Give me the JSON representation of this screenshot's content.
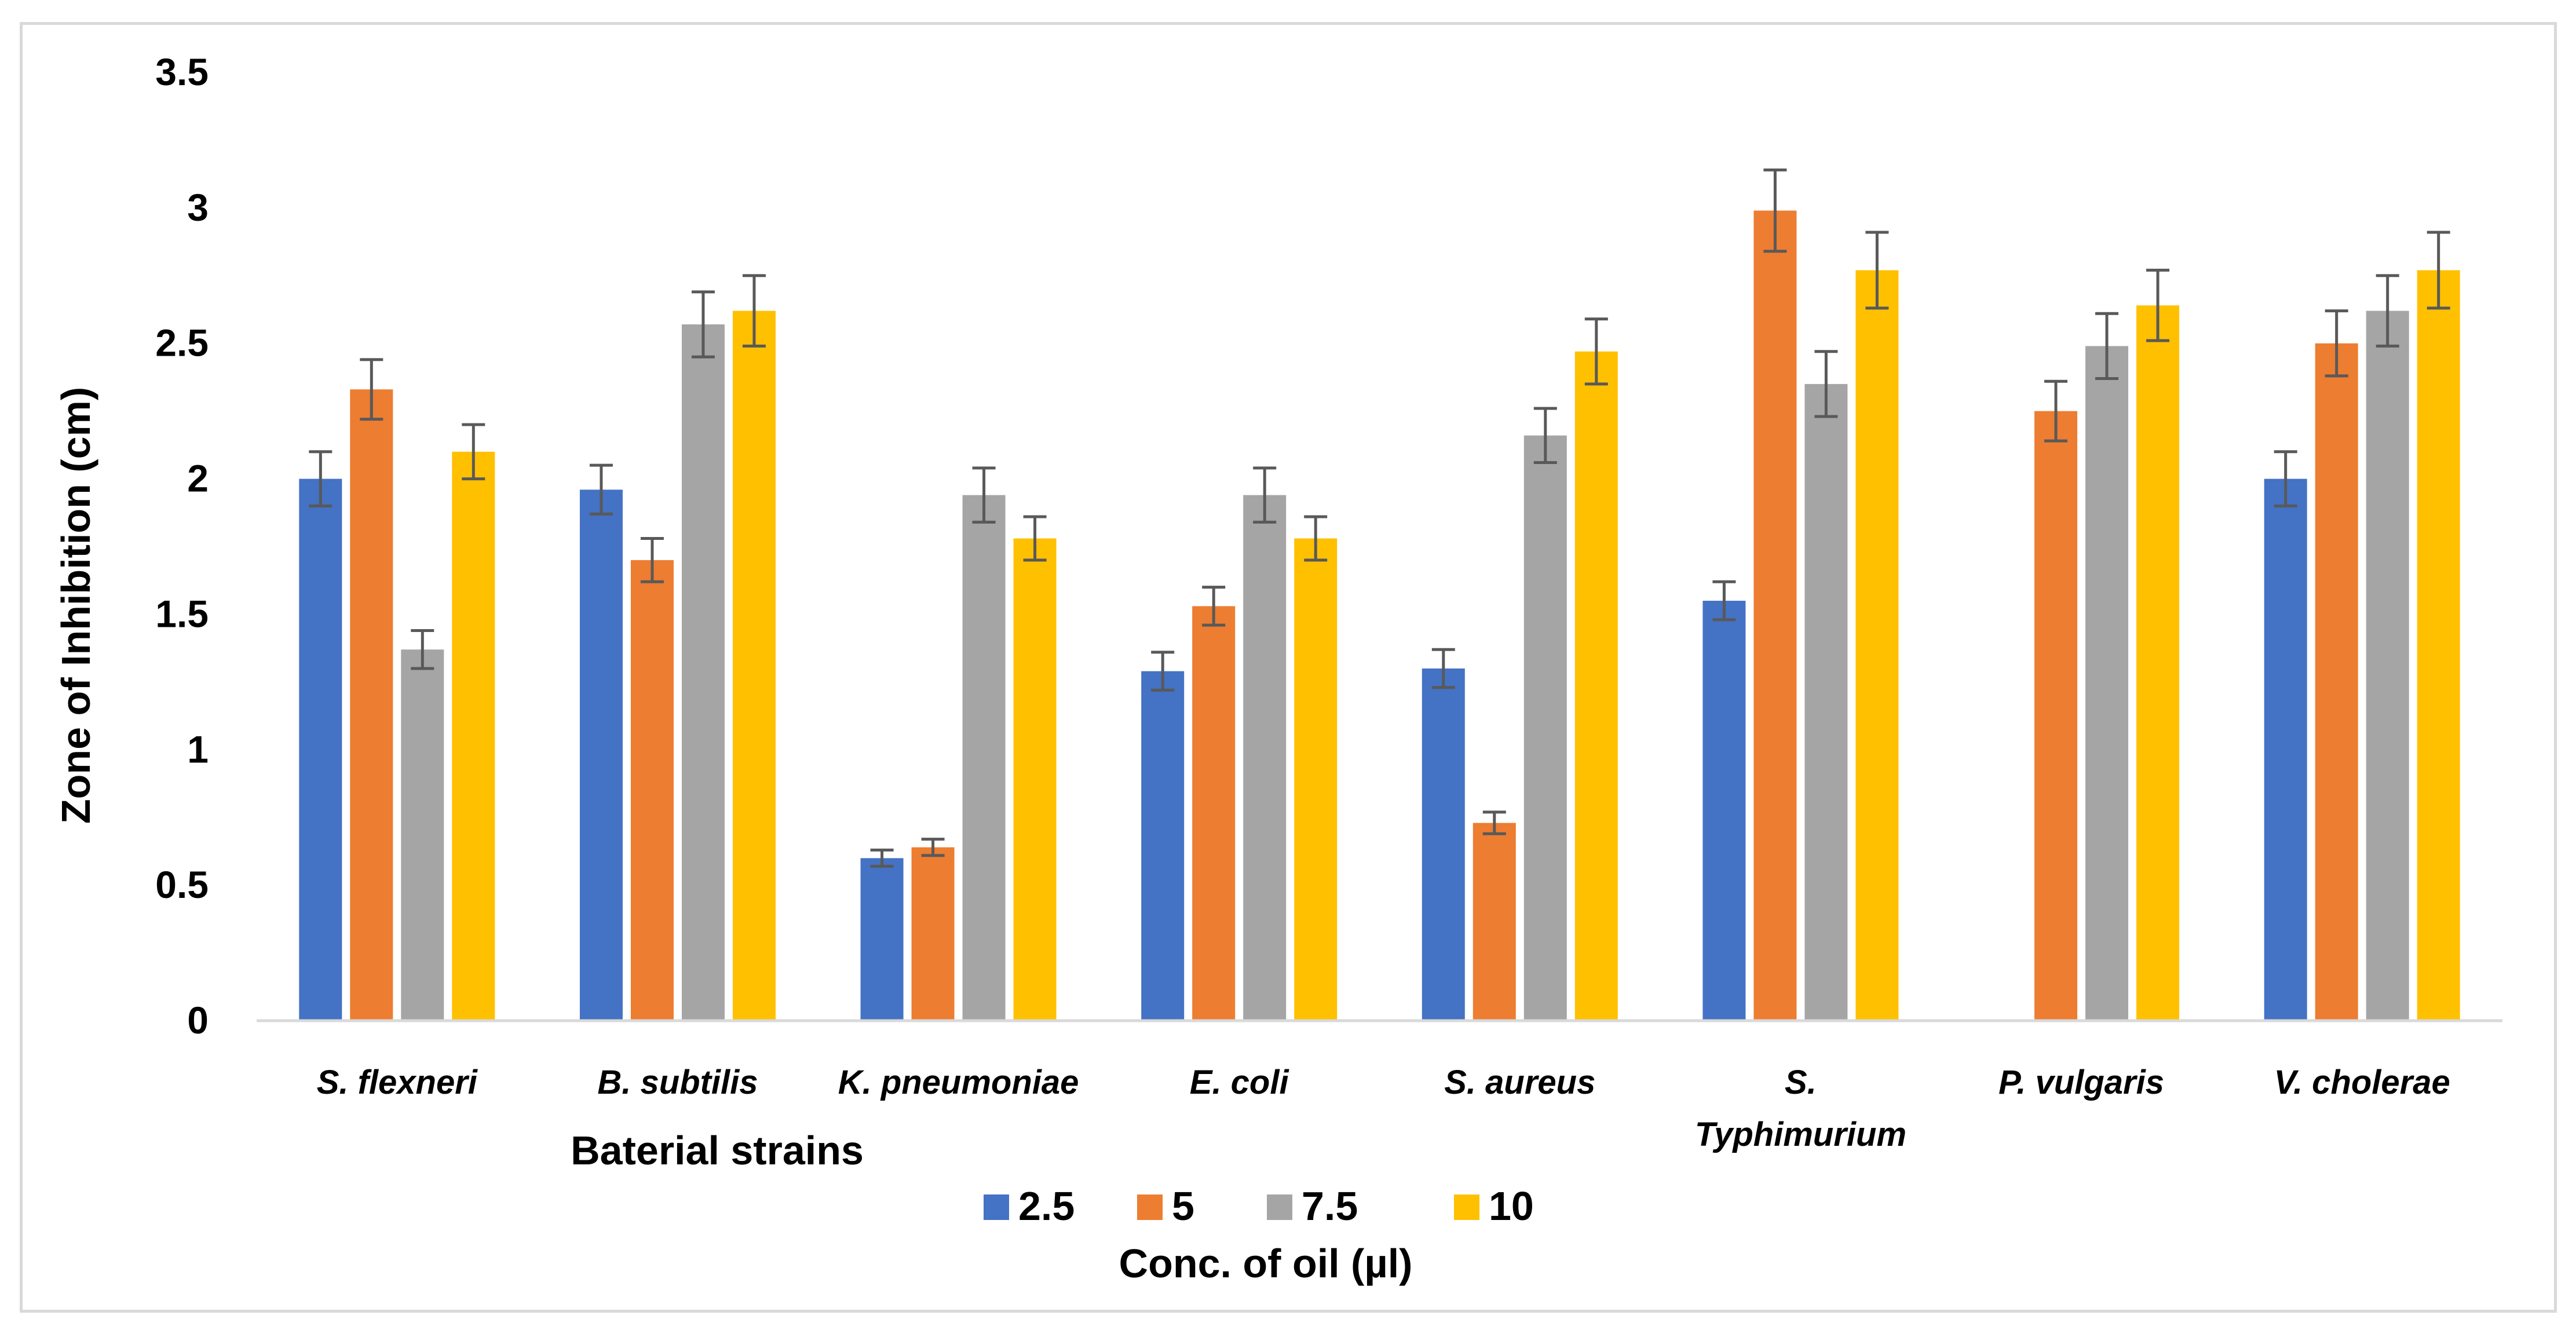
{
  "chart_data": {
    "type": "bar",
    "title": "",
    "ylabel": "Zone of Inhibition (cm)",
    "xlabel": "Baterial strains",
    "legend_title": "Conc. of oil (µl)",
    "legend_position": "bottom",
    "ylim": [
      0,
      3.5
    ],
    "yticks": [
      0,
      0.5,
      1,
      1.5,
      2,
      2.5,
      3,
      3.5
    ],
    "ytick_labels": [
      "0",
      "0.5",
      "1",
      "1.5",
      "2",
      "2.5",
      "3",
      "3.5"
    ],
    "grid": false,
    "categories": [
      [
        "S.  flexneri"
      ],
      [
        "B. subtilis"
      ],
      [
        "K. pneumoniae"
      ],
      [
        "E. coli"
      ],
      [
        "S. aureus"
      ],
      [
        "S.",
        "Typhimurium"
      ],
      [
        "P. vulgaris"
      ],
      [
        "V. cholerae"
      ]
    ],
    "series": [
      {
        "name": "2.5",
        "color": "#4472c4",
        "values": [
          2.0,
          1.96,
          0.6,
          1.29,
          1.3,
          1.55,
          0,
          2.0
        ],
        "errors": [
          0.1,
          0.09,
          0.03,
          0.07,
          0.07,
          0.07,
          0,
          0.1
        ]
      },
      {
        "name": "5",
        "color": "#ed7d31",
        "values": [
          2.33,
          1.7,
          0.64,
          1.53,
          0.73,
          2.99,
          2.25,
          2.5
        ],
        "errors": [
          0.11,
          0.08,
          0.03,
          0.07,
          0.04,
          0.15,
          0.11,
          0.12
        ]
      },
      {
        "name": "7.5",
        "color": "#a5a5a5",
        "values": [
          1.37,
          2.57,
          1.94,
          1.94,
          2.16,
          2.35,
          2.49,
          2.62
        ],
        "errors": [
          0.07,
          0.12,
          0.1,
          0.1,
          0.1,
          0.12,
          0.12,
          0.13
        ]
      },
      {
        "name": "10",
        "color": "#ffc000",
        "values": [
          2.1,
          2.62,
          1.78,
          1.78,
          2.47,
          2.77,
          2.64,
          2.77
        ],
        "errors": [
          0.1,
          0.13,
          0.08,
          0.08,
          0.12,
          0.14,
          0.13,
          0.14
        ]
      }
    ]
  }
}
